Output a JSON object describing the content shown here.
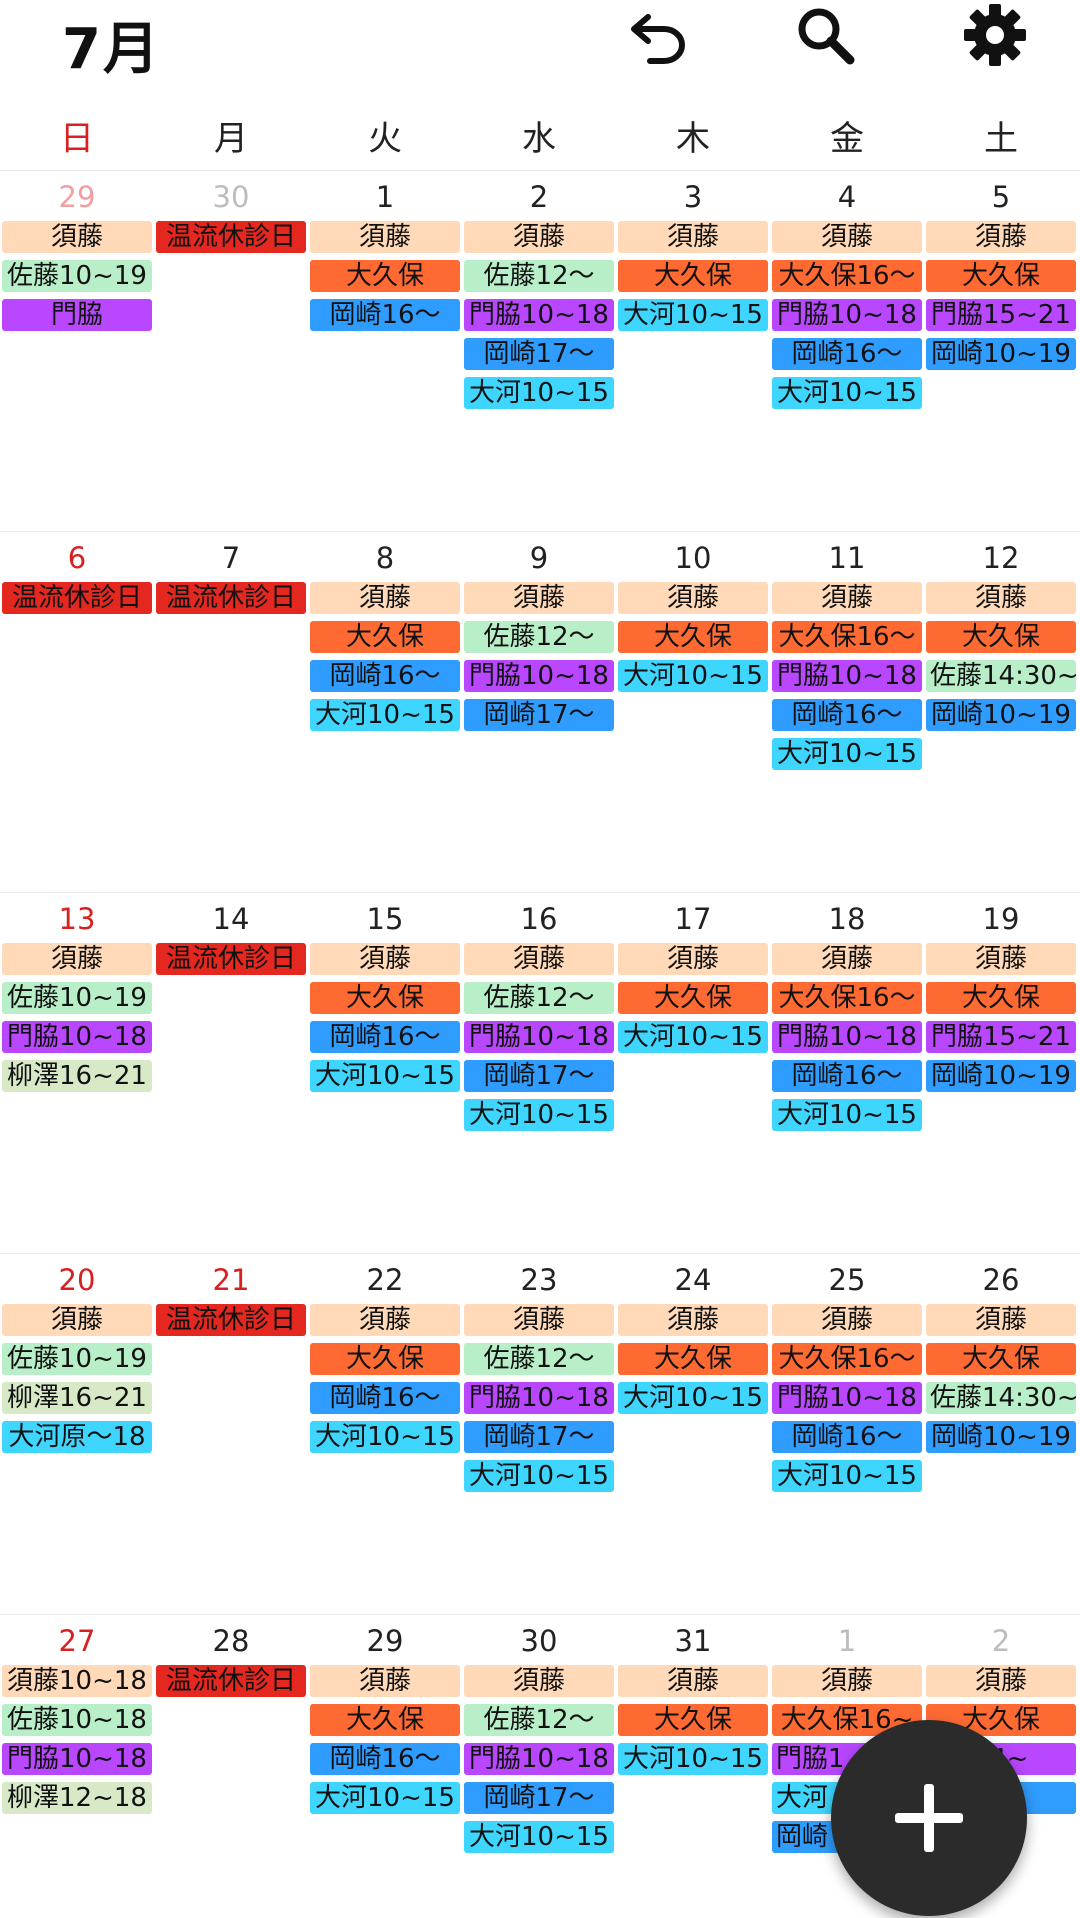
{
  "header": {
    "title": "7月",
    "icons": [
      "undo-icon",
      "search-icon",
      "gear-icon"
    ]
  },
  "weekdays": [
    "日",
    "月",
    "火",
    "水",
    "木",
    "金",
    "土"
  ],
  "colors": {
    "sudo": "#ffd9b8",
    "closed": "#e4271f",
    "okubo": "#ff6a33",
    "sato": "#b9efc8",
    "kadowaki": "#b847ff",
    "okazaki": "#2f9dff",
    "okawa": "#3ed6ff",
    "yanagisawa": "#d8e9c7"
  },
  "weeks": [
    {
      "days": [
        {
          "num": "29",
          "other": true,
          "events": [
            {
              "t": "須藤",
              "c": "sudo"
            },
            {
              "t": "佐藤10~19",
              "c": "sato"
            },
            {
              "t": "門脇",
              "c": "kadowaki"
            }
          ]
        },
        {
          "num": "30",
          "other": true,
          "events": [
            {
              "t": "温流休診日",
              "c": "closed"
            }
          ]
        },
        {
          "num": "1",
          "events": [
            {
              "t": "須藤",
              "c": "sudo"
            },
            {
              "t": "大久保",
              "c": "okubo"
            },
            {
              "t": "岡崎16〜",
              "c": "okazaki"
            }
          ]
        },
        {
          "num": "2",
          "events": [
            {
              "t": "須藤",
              "c": "sudo"
            },
            {
              "t": "佐藤12〜",
              "c": "sato"
            },
            {
              "t": "門脇10~18",
              "c": "kadowaki"
            },
            {
              "t": "岡崎17〜",
              "c": "okazaki"
            },
            {
              "t": "大河10~15",
              "c": "okawa"
            }
          ]
        },
        {
          "num": "3",
          "events": [
            {
              "t": "須藤",
              "c": "sudo"
            },
            {
              "t": "大久保",
              "c": "okubo"
            },
            {
              "t": "大河10~15",
              "c": "okawa"
            }
          ]
        },
        {
          "num": "4",
          "events": [
            {
              "t": "須藤",
              "c": "sudo"
            },
            {
              "t": "大久保16〜",
              "c": "okubo"
            },
            {
              "t": "門脇10~18",
              "c": "kadowaki"
            },
            {
              "t": "岡崎16〜",
              "c": "okazaki"
            },
            {
              "t": "大河10~15",
              "c": "okawa"
            }
          ]
        },
        {
          "num": "5",
          "events": [
            {
              "t": "須藤",
              "c": "sudo"
            },
            {
              "t": "大久保",
              "c": "okubo"
            },
            {
              "t": "門脇15~21",
              "c": "kadowaki"
            },
            {
              "t": "岡崎10~19",
              "c": "okazaki"
            }
          ]
        }
      ]
    },
    {
      "days": [
        {
          "num": "6",
          "events": [
            {
              "t": "温流休診日",
              "c": "closed"
            }
          ]
        },
        {
          "num": "7",
          "events": [
            {
              "t": "温流休診日",
              "c": "closed"
            }
          ]
        },
        {
          "num": "8",
          "events": [
            {
              "t": "須藤",
              "c": "sudo"
            },
            {
              "t": "大久保",
              "c": "okubo"
            },
            {
              "t": "岡崎16〜",
              "c": "okazaki"
            },
            {
              "t": "大河10~15",
              "c": "okawa"
            }
          ]
        },
        {
          "num": "9",
          "events": [
            {
              "t": "須藤",
              "c": "sudo"
            },
            {
              "t": "佐藤12〜",
              "c": "sato"
            },
            {
              "t": "門脇10~18",
              "c": "kadowaki"
            },
            {
              "t": "岡崎17〜",
              "c": "okazaki"
            }
          ]
        },
        {
          "num": "10",
          "events": [
            {
              "t": "須藤",
              "c": "sudo"
            },
            {
              "t": "大久保",
              "c": "okubo"
            },
            {
              "t": "大河10~15",
              "c": "okawa"
            }
          ]
        },
        {
          "num": "11",
          "events": [
            {
              "t": "須藤",
              "c": "sudo"
            },
            {
              "t": "大久保16〜",
              "c": "okubo"
            },
            {
              "t": "門脇10~18",
              "c": "kadowaki"
            },
            {
              "t": "岡崎16〜",
              "c": "okazaki"
            },
            {
              "t": "大河10~15",
              "c": "okawa"
            }
          ]
        },
        {
          "num": "12",
          "events": [
            {
              "t": "須藤",
              "c": "sudo"
            },
            {
              "t": "大久保",
              "c": "okubo"
            },
            {
              "t": "佐藤14:30~",
              "c": "sato",
              "left": true
            },
            {
              "t": "岡崎10~19",
              "c": "okazaki"
            }
          ]
        }
      ]
    },
    {
      "days": [
        {
          "num": "13",
          "events": [
            {
              "t": "須藤",
              "c": "sudo"
            },
            {
              "t": "佐藤10~19",
              "c": "sato"
            },
            {
              "t": "門脇10~18",
              "c": "kadowaki"
            },
            {
              "t": "柳澤16~21",
              "c": "yanagisawa"
            }
          ]
        },
        {
          "num": "14",
          "events": [
            {
              "t": "温流休診日",
              "c": "closed"
            }
          ]
        },
        {
          "num": "15",
          "events": [
            {
              "t": "須藤",
              "c": "sudo"
            },
            {
              "t": "大久保",
              "c": "okubo"
            },
            {
              "t": "岡崎16〜",
              "c": "okazaki"
            },
            {
              "t": "大河10~15",
              "c": "okawa"
            }
          ]
        },
        {
          "num": "16",
          "events": [
            {
              "t": "須藤",
              "c": "sudo"
            },
            {
              "t": "佐藤12〜",
              "c": "sato"
            },
            {
              "t": "門脇10~18",
              "c": "kadowaki"
            },
            {
              "t": "岡崎17〜",
              "c": "okazaki"
            },
            {
              "t": "大河10~15",
              "c": "okawa"
            }
          ]
        },
        {
          "num": "17",
          "events": [
            {
              "t": "須藤",
              "c": "sudo"
            },
            {
              "t": "大久保",
              "c": "okubo"
            },
            {
              "t": "大河10~15",
              "c": "okawa"
            }
          ]
        },
        {
          "num": "18",
          "events": [
            {
              "t": "須藤",
              "c": "sudo"
            },
            {
              "t": "大久保16〜",
              "c": "okubo"
            },
            {
              "t": "門脇10~18",
              "c": "kadowaki"
            },
            {
              "t": "岡崎16〜",
              "c": "okazaki"
            },
            {
              "t": "大河10~15",
              "c": "okawa"
            }
          ]
        },
        {
          "num": "19",
          "events": [
            {
              "t": "須藤",
              "c": "sudo"
            },
            {
              "t": "大久保",
              "c": "okubo"
            },
            {
              "t": "門脇15~21",
              "c": "kadowaki"
            },
            {
              "t": "岡崎10~19",
              "c": "okazaki"
            }
          ]
        }
      ]
    },
    {
      "days": [
        {
          "num": "20",
          "events": [
            {
              "t": "須藤",
              "c": "sudo"
            },
            {
              "t": "佐藤10~19",
              "c": "sato"
            },
            {
              "t": "柳澤16~21",
              "c": "yanagisawa"
            },
            {
              "t": "大河原〜18",
              "c": "okawa"
            }
          ]
        },
        {
          "num": "21",
          "sunLike": true,
          "events": [
            {
              "t": "温流休診日",
              "c": "closed"
            }
          ]
        },
        {
          "num": "22",
          "events": [
            {
              "t": "須藤",
              "c": "sudo"
            },
            {
              "t": "大久保",
              "c": "okubo"
            },
            {
              "t": "岡崎16〜",
              "c": "okazaki"
            },
            {
              "t": "大河10~15",
              "c": "okawa"
            }
          ]
        },
        {
          "num": "23",
          "events": [
            {
              "t": "須藤",
              "c": "sudo"
            },
            {
              "t": "佐藤12〜",
              "c": "sato"
            },
            {
              "t": "門脇10~18",
              "c": "kadowaki"
            },
            {
              "t": "岡崎17〜",
              "c": "okazaki"
            },
            {
              "t": "大河10~15",
              "c": "okawa"
            }
          ]
        },
        {
          "num": "24",
          "events": [
            {
              "t": "須藤",
              "c": "sudo"
            },
            {
              "t": "大久保",
              "c": "okubo"
            },
            {
              "t": "大河10~15",
              "c": "okawa"
            }
          ]
        },
        {
          "num": "25",
          "events": [
            {
              "t": "須藤",
              "c": "sudo"
            },
            {
              "t": "大久保16〜",
              "c": "okubo"
            },
            {
              "t": "門脇10~18",
              "c": "kadowaki"
            },
            {
              "t": "岡崎16〜",
              "c": "okazaki"
            },
            {
              "t": "大河10~15",
              "c": "okawa"
            }
          ]
        },
        {
          "num": "26",
          "events": [
            {
              "t": "須藤",
              "c": "sudo"
            },
            {
              "t": "大久保",
              "c": "okubo"
            },
            {
              "t": "佐藤14:30~",
              "c": "sato",
              "left": true
            },
            {
              "t": "岡崎10~19",
              "c": "okazaki"
            }
          ]
        }
      ]
    },
    {
      "days": [
        {
          "num": "27",
          "events": [
            {
              "t": "須藤10~18",
              "c": "sudo"
            },
            {
              "t": "佐藤10~18",
              "c": "sato"
            },
            {
              "t": "門脇10~18",
              "c": "kadowaki"
            },
            {
              "t": "柳澤12~18",
              "c": "yanagisawa"
            }
          ]
        },
        {
          "num": "28",
          "events": [
            {
              "t": "温流休診日",
              "c": "closed"
            }
          ]
        },
        {
          "num": "29",
          "events": [
            {
              "t": "須藤",
              "c": "sudo"
            },
            {
              "t": "大久保",
              "c": "okubo"
            },
            {
              "t": "岡崎16〜",
              "c": "okazaki"
            },
            {
              "t": "大河10~15",
              "c": "okawa"
            }
          ]
        },
        {
          "num": "30",
          "events": [
            {
              "t": "須藤",
              "c": "sudo"
            },
            {
              "t": "佐藤12〜",
              "c": "sato"
            },
            {
              "t": "門脇10~18",
              "c": "kadowaki"
            },
            {
              "t": "岡崎17〜",
              "c": "okazaki"
            },
            {
              "t": "大河10~15",
              "c": "okawa"
            }
          ]
        },
        {
          "num": "31",
          "events": [
            {
              "t": "須藤",
              "c": "sudo"
            },
            {
              "t": "大久保",
              "c": "okubo"
            },
            {
              "t": "大河10~15",
              "c": "okawa"
            }
          ]
        },
        {
          "num": "1",
          "other": true,
          "events": [
            {
              "t": "須藤",
              "c": "sudo"
            },
            {
              "t": "大久保16~",
              "c": "okubo"
            },
            {
              "t": "門脇1",
              "c": "kadowaki",
              "left": true
            },
            {
              "t": "大河",
              "c": "okawa",
              "left": true
            },
            {
              "t": "岡崎",
              "c": "okazaki",
              "left": true
            }
          ]
        },
        {
          "num": "2",
          "other": true,
          "events": [
            {
              "t": "須藤",
              "c": "sudo"
            },
            {
              "t": "大久保",
              "c": "okubo"
            },
            {
              "t": "14~",
              "c": "kadowaki"
            },
            {
              "t": "15",
              "c": "okazaki"
            }
          ]
        }
      ]
    }
  ],
  "fab": {
    "icon": "plus-icon"
  }
}
